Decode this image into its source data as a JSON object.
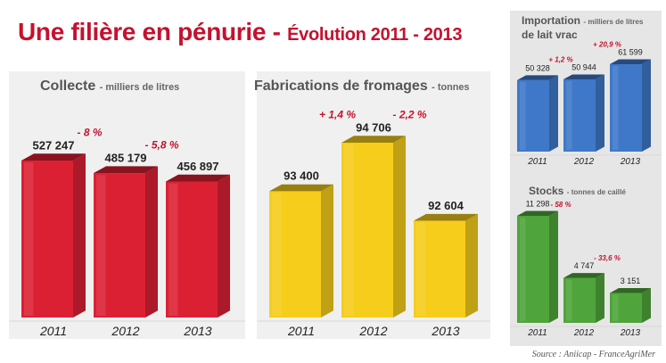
{
  "header": {
    "title": "Une filière en pénurie -",
    "subtitle": "Évolution 2011 - 2013"
  },
  "source": "Source : Aniicap - FranceAgriMer",
  "colors": {
    "red": "#dc2034",
    "yellow": "#f6cd1b",
    "blue": "#3f78c9",
    "green": "#4fa53b",
    "title": "#c4122f",
    "change": "#c4122f"
  },
  "chart_data": [
    {
      "type": "bar",
      "title": "Collecte",
      "unit": "milliers de litres",
      "categories": [
        "2011",
        "2012",
        "2013"
      ],
      "values": [
        527247,
        485179,
        456897
      ],
      "value_labels": [
        "527 247",
        "485 179",
        "456 897"
      ],
      "changes": [
        "- 8 %",
        "- 5,8 %"
      ],
      "color": "#dc2034"
    },
    {
      "type": "bar",
      "title": "Fabrications de fromages",
      "unit": "tonnes",
      "categories": [
        "2011",
        "2012",
        "2013"
      ],
      "values": [
        93400,
        94706,
        92604
      ],
      "value_labels": [
        "93 400",
        "94 706",
        "92 604"
      ],
      "changes": [
        "+ 1,4 %",
        "- 2,2 %"
      ],
      "color": "#f6cd1b"
    },
    {
      "type": "bar",
      "title": "Importation",
      "title_line2": "de lait vrac",
      "unit": "milliers de litres",
      "categories": [
        "2011",
        "2012",
        "2013"
      ],
      "values": [
        50328,
        50944,
        61599
      ],
      "value_labels": [
        "50 328",
        "50 944",
        "61 599"
      ],
      "changes": [
        "+ 1,2 %",
        "+ 20,9 %"
      ],
      "color": "#3f78c9"
    },
    {
      "type": "bar",
      "title": "Stocks",
      "unit": "tonnes de caillé",
      "categories": [
        "2011",
        "2012",
        "2013"
      ],
      "values": [
        11298,
        4747,
        3151
      ],
      "value_labels": [
        "11 298",
        "4 747",
        "3 151"
      ],
      "changes": [
        "- 58 %",
        "- 33,6 %"
      ],
      "color": "#4fa53b"
    }
  ]
}
